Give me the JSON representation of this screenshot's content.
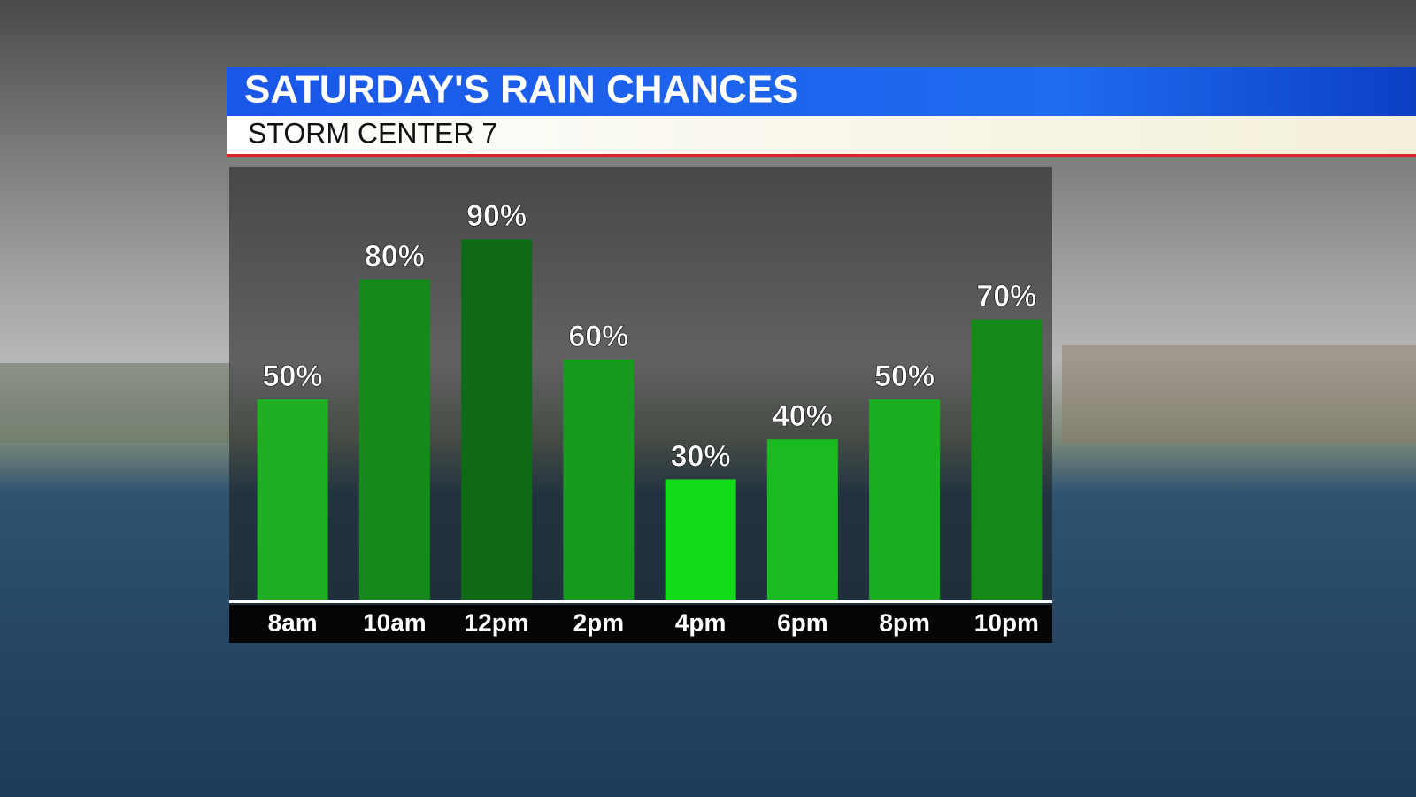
{
  "chart_data": {
    "type": "bar",
    "title": "SATURDAY'S RAIN CHANCES",
    "subtitle": "STORM CENTER 7",
    "categories": [
      "8am",
      "10am",
      "12pm",
      "2pm",
      "4pm",
      "6pm",
      "8pm",
      "10pm"
    ],
    "values": [
      50,
      80,
      90,
      60,
      30,
      40,
      50,
      70
    ],
    "value_labels": [
      "50%",
      "80%",
      "90%",
      "60%",
      "30%",
      "40%",
      "50%",
      "70%"
    ],
    "colors": [
      "#1fae24",
      "#15891a",
      "#0e6a14",
      "#169c1c",
      "#12dc1a",
      "#19bb20",
      "#1aae20",
      "#138a18"
    ]
  }
}
